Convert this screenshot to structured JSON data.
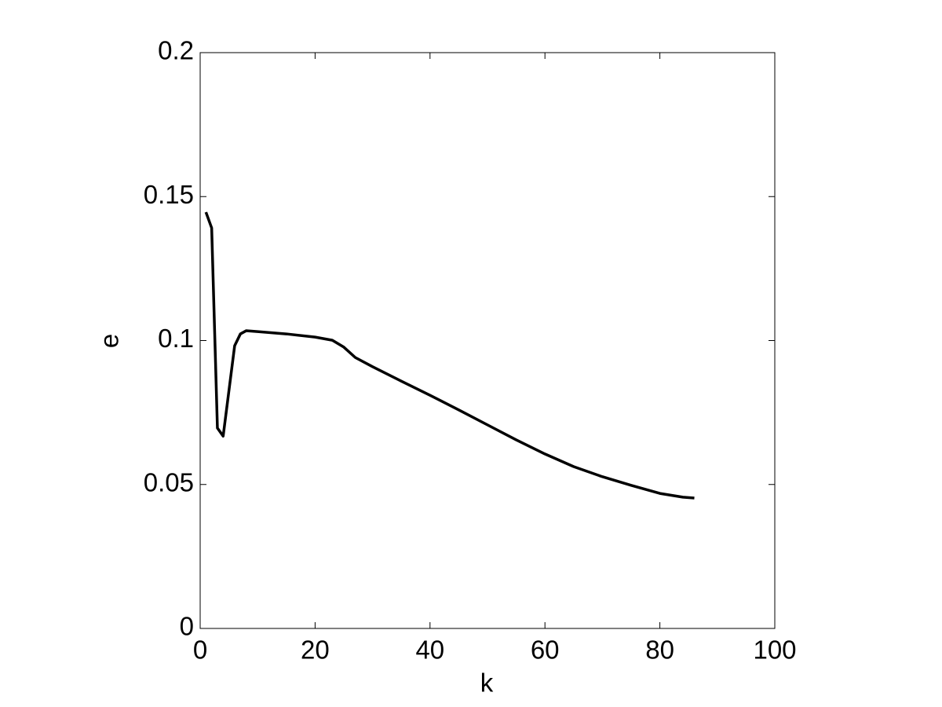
{
  "chart_data": {
    "type": "line",
    "xlabel": "k",
    "ylabel": "e",
    "series": [
      {
        "color": "#000000",
        "x": [
          1,
          2,
          3,
          4,
          6,
          7,
          8,
          10,
          15,
          20,
          23,
          25,
          27,
          30,
          35,
          40,
          45,
          50,
          55,
          60,
          65,
          70,
          75,
          80,
          84,
          86
        ],
        "values": [
          0.1446,
          0.1391,
          0.0696,
          0.0668,
          0.0982,
          0.1023,
          0.1034,
          0.1031,
          0.1023,
          0.1012,
          0.1001,
          0.0977,
          0.0941,
          0.0909,
          0.0859,
          0.081,
          0.0759,
          0.0707,
          0.0655,
          0.0606,
          0.0562,
          0.0527,
          0.0497,
          0.0469,
          0.0456,
          0.0453
        ]
      }
    ],
    "xlim": [
      0,
      100
    ],
    "xticks": [
      0,
      20,
      40,
      60,
      80,
      100
    ],
    "ylim": [
      0,
      0.2
    ],
    "yticks": [
      0,
      0.05,
      0.1,
      0.15,
      0.2
    ],
    "grid": false
  }
}
